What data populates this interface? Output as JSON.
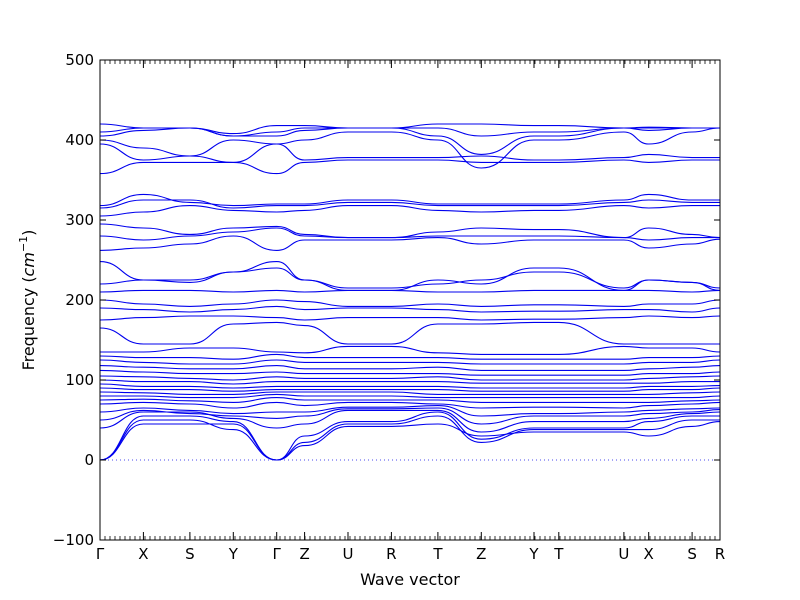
{
  "chart_data": {
    "type": "line",
    "title": "",
    "xlabel": "Wave vector",
    "ylabel": "Frequency",
    "ylabel_unit": "cm",
    "ylabel_unit_exponent": "−1",
    "ylim": [
      -100,
      500
    ],
    "yticks": [
      "−100",
      "0",
      "100",
      "200",
      "300",
      "400",
      "500"
    ],
    "ytick_values": [
      -100,
      0,
      100,
      200,
      300,
      400,
      500
    ],
    "kpoint_labels": [
      "Γ",
      "X",
      "S",
      "Y",
      "Γ",
      "Z",
      "U",
      "R",
      "T",
      "Z",
      "Y",
      "T",
      "U",
      "X",
      "S",
      "R"
    ],
    "kpoint_positions": [
      0,
      0.07,
      0.145,
      0.215,
      0.285,
      0.33,
      0.4,
      0.47,
      0.545,
      0.615,
      0.7,
      0.74,
      0.845,
      0.885,
      0.955,
      1.0
    ],
    "zero_line": true,
    "line_color": "#0000ee",
    "zero_line_color": "#4a4aee",
    "series": [
      {
        "values": [
          0,
          45,
          45,
          45,
          0,
          18,
          42,
          42,
          45,
          30,
          35,
          35,
          35,
          30,
          42,
          48
        ]
      },
      {
        "values": [
          0,
          50,
          50,
          38,
          0,
          22,
          45,
          45,
          55,
          22,
          38,
          38,
          38,
          38,
          50,
          50
        ]
      },
      {
        "values": [
          0,
          55,
          55,
          48,
          0,
          30,
          48,
          48,
          60,
          26,
          40,
          40,
          40,
          48,
          55,
          55
        ]
      },
      {
        "values": [
          40,
          60,
          60,
          52,
          40,
          45,
          62,
          62,
          62,
          35,
          48,
          48,
          48,
          52,
          58,
          60
        ]
      },
      {
        "values": [
          50,
          62,
          58,
          55,
          52,
          55,
          64,
          64,
          65,
          45,
          55,
          55,
          55,
          58,
          60,
          63
        ]
      },
      {
        "values": [
          60,
          65,
          62,
          58,
          60,
          60,
          66,
          66,
          68,
          55,
          58,
          58,
          60,
          62,
          64,
          65
        ]
      },
      {
        "values": [
          70,
          72,
          70,
          65,
          72,
          68,
          72,
          72,
          70,
          65,
          66,
          66,
          65,
          68,
          70,
          72
        ]
      },
      {
        "values": [
          75,
          76,
          74,
          72,
          78,
          75,
          75,
          75,
          75,
          72,
          72,
          72,
          72,
          72,
          74,
          75
        ]
      },
      {
        "values": [
          80,
          80,
          78,
          78,
          82,
          80,
          80,
          80,
          78,
          78,
          78,
          78,
          78,
          78,
          78,
          80
        ]
      },
      {
        "values": [
          85,
          84,
          82,
          82,
          85,
          85,
          85,
          85,
          82,
          82,
          82,
          82,
          82,
          82,
          84,
          85
        ]
      },
      {
        "values": [
          90,
          88,
          88,
          86,
          88,
          88,
          88,
          88,
          88,
          86,
          86,
          86,
          86,
          88,
          88,
          90
        ]
      },
      {
        "values": [
          95,
          92,
          92,
          90,
          92,
          92,
          92,
          92,
          92,
          90,
          90,
          90,
          90,
          92,
          92,
          93
        ]
      },
      {
        "values": [
          100,
          98,
          98,
          95,
          98,
          98,
          98,
          98,
          98,
          96,
          96,
          96,
          96,
          96,
          98,
          98
        ]
      },
      {
        "values": [
          105,
          104,
          102,
          100,
          104,
          102,
          102,
          102,
          104,
          100,
          100,
          100,
          100,
          102,
          104,
          105
        ]
      },
      {
        "values": [
          112,
          110,
          108,
          108,
          110,
          108,
          108,
          108,
          108,
          106,
          106,
          106,
          106,
          108,
          108,
          110
        ]
      },
      {
        "values": [
          118,
          116,
          114,
          114,
          118,
          114,
          114,
          114,
          116,
          112,
          112,
          112,
          112,
          114,
          116,
          118
        ]
      },
      {
        "values": [
          125,
          122,
          120,
          120,
          125,
          122,
          122,
          122,
          122,
          120,
          120,
          120,
          120,
          122,
          122,
          125
        ]
      },
      {
        "values": [
          130,
          128,
          128,
          126,
          132,
          128,
          128,
          128,
          128,
          126,
          126,
          126,
          126,
          128,
          128,
          130
        ]
      },
      {
        "values": [
          135,
          135,
          140,
          140,
          135,
          134,
          142,
          142,
          134,
          132,
          132,
          132,
          142,
          140,
          140,
          135
        ]
      },
      {
        "values": [
          165,
          145,
          145,
          170,
          172,
          168,
          145,
          145,
          170,
          170,
          172,
          172,
          145,
          145,
          145,
          145
        ]
      },
      {
        "values": [
          175,
          178,
          180,
          180,
          178,
          175,
          178,
          178,
          178,
          175,
          176,
          176,
          178,
          180,
          178,
          180
        ]
      },
      {
        "values": [
          190,
          188,
          185,
          188,
          192,
          188,
          190,
          190,
          188,
          185,
          186,
          186,
          188,
          188,
          185,
          190
        ]
      },
      {
        "values": [
          200,
          195,
          192,
          195,
          200,
          198,
          192,
          192,
          195,
          192,
          194,
          194,
          192,
          195,
          195,
          200
        ]
      },
      {
        "values": [
          210,
          212,
          212,
          210,
          212,
          210,
          212,
          212,
          210,
          210,
          212,
          212,
          212,
          212,
          210,
          212
        ]
      },
      {
        "values": [
          220,
          225,
          222,
          235,
          240,
          225,
          215,
          215,
          220,
          225,
          235,
          235,
          215,
          225,
          222,
          215
        ]
      },
      {
        "values": [
          248,
          225,
          225,
          235,
          248,
          225,
          212,
          212,
          225,
          220,
          240,
          240,
          212,
          225,
          222,
          212
        ]
      },
      {
        "values": [
          262,
          265,
          270,
          280,
          262,
          275,
          275,
          275,
          278,
          270,
          275,
          275,
          275,
          265,
          270,
          276
        ]
      },
      {
        "values": [
          280,
          275,
          280,
          285,
          290,
          280,
          278,
          278,
          280,
          280,
          280,
          280,
          278,
          275,
          278,
          278
        ]
      },
      {
        "values": [
          295,
          290,
          282,
          290,
          292,
          282,
          278,
          278,
          285,
          290,
          288,
          288,
          278,
          290,
          282,
          278
        ]
      },
      {
        "values": [
          305,
          310,
          318,
          312,
          310,
          312,
          318,
          318,
          312,
          310,
          312,
          312,
          318,
          315,
          318,
          318
        ]
      },
      {
        "values": [
          315,
          325,
          325,
          315,
          318,
          318,
          322,
          322,
          318,
          318,
          318,
          318,
          322,
          325,
          322,
          322
        ]
      },
      {
        "values": [
          318,
          332,
          322,
          318,
          320,
          320,
          325,
          325,
          320,
          320,
          320,
          320,
          325,
          332,
          325,
          325
        ]
      },
      {
        "values": [
          358,
          372,
          372,
          372,
          358,
          372,
          375,
          375,
          375,
          372,
          372,
          372,
          375,
          372,
          375,
          375
        ]
      },
      {
        "values": [
          395,
          375,
          380,
          372,
          395,
          375,
          378,
          378,
          378,
          380,
          375,
          375,
          378,
          382,
          378,
          378
        ]
      },
      {
        "values": [
          400,
          390,
          380,
          400,
          395,
          400,
          410,
          410,
          400,
          365,
          400,
          400,
          410,
          395,
          410,
          415
        ]
      },
      {
        "values": [
          405,
          412,
          415,
          405,
          405,
          412,
          415,
          415,
          405,
          382,
          405,
          405,
          415,
          412,
          415,
          415
        ]
      },
      {
        "values": [
          410,
          415,
          415,
          405,
          410,
          415,
          415,
          415,
          415,
          405,
          410,
          410,
          415,
          415,
          415,
          415
        ]
      },
      {
        "values": [
          420,
          415,
          415,
          408,
          418,
          418,
          415,
          415,
          420,
          420,
          418,
          418,
          415,
          416,
          415,
          415
        ]
      }
    ]
  }
}
